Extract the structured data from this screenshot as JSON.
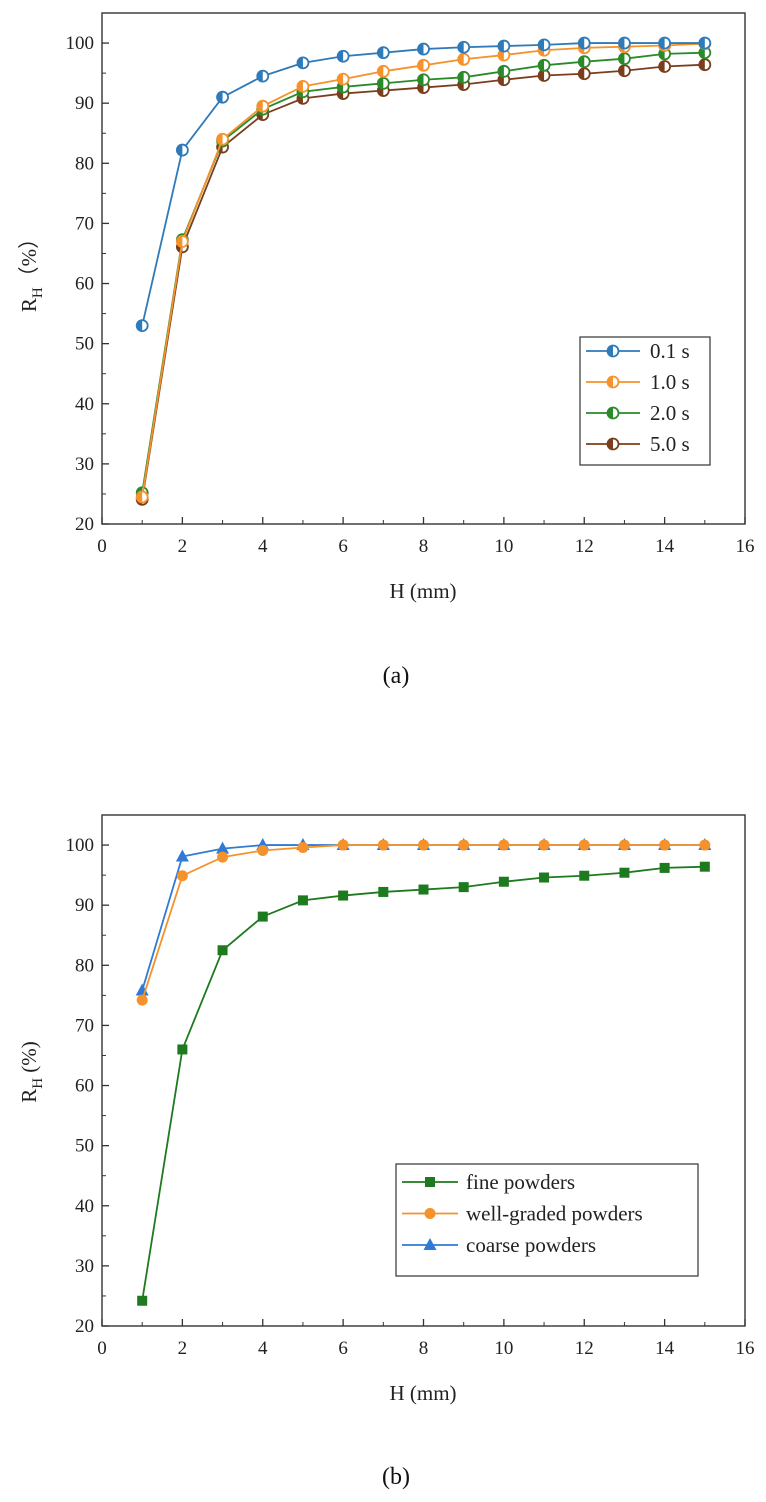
{
  "chart_data": [
    {
      "type": "line",
      "caption": "(a)",
      "xlabel": "H (mm)",
      "ylabel_main": "R",
      "ylabel_sub": "H",
      "ylabel_suffix": "（%）",
      "xlim": [
        0,
        16
      ],
      "ylim": [
        20,
        105
      ],
      "xticks": [
        0,
        2,
        4,
        6,
        8,
        10,
        12,
        14,
        16
      ],
      "yticks": [
        20,
        30,
        40,
        50,
        60,
        70,
        80,
        90,
        100
      ],
      "legend_position": "center-right",
      "x": [
        1,
        2,
        3,
        4,
        5,
        6,
        7,
        8,
        9,
        10,
        11,
        12,
        13,
        14,
        15
      ],
      "series": [
        {
          "name": "0.1 s",
          "color": "#2f7ab8",
          "marker": "half-circle",
          "values": [
            53.0,
            82.2,
            91.0,
            94.5,
            96.7,
            97.8,
            98.4,
            99.0,
            99.3,
            99.5,
            99.7,
            100.0,
            100.0,
            100.0,
            100.0
          ]
        },
        {
          "name": "1.0 s",
          "color": "#f5922b",
          "marker": "half-circle",
          "values": [
            24.5,
            67.0,
            84.0,
            89.5,
            92.8,
            94.0,
            95.3,
            96.3,
            97.3,
            98.0,
            98.8,
            99.2,
            99.4,
            99.6,
            99.9
          ]
        },
        {
          "name": "2.0 s",
          "color": "#2a8a2a",
          "marker": "half-circle",
          "values": [
            25.2,
            67.3,
            83.7,
            89.0,
            91.9,
            92.7,
            93.3,
            93.9,
            94.3,
            95.3,
            96.3,
            96.9,
            97.4,
            98.2,
            98.4
          ]
        },
        {
          "name": "5.0 s",
          "color": "#7a3e1c",
          "marker": "half-circle",
          "values": [
            24.1,
            66.1,
            82.7,
            88.1,
            90.8,
            91.6,
            92.1,
            92.6,
            93.1,
            93.9,
            94.6,
            94.9,
            95.4,
            96.1,
            96.4
          ]
        }
      ]
    },
    {
      "type": "line",
      "caption": "(b)",
      "xlabel": "H (mm)",
      "ylabel_main": "R",
      "ylabel_sub": "H",
      "ylabel_suffix": " (%)",
      "xlim": [
        0,
        16
      ],
      "ylim": [
        20,
        105
      ],
      "xticks": [
        0,
        2,
        4,
        6,
        8,
        10,
        12,
        14,
        16
      ],
      "yticks": [
        20,
        30,
        40,
        50,
        60,
        70,
        80,
        90,
        100
      ],
      "legend_position": "bottom-right",
      "x": [
        1,
        2,
        3,
        4,
        5,
        6,
        7,
        8,
        9,
        10,
        11,
        12,
        13,
        14,
        15
      ],
      "series": [
        {
          "name": "fine powders",
          "color": "#1e7a1e",
          "marker": "square",
          "values": [
            24.2,
            66.0,
            82.5,
            88.1,
            90.8,
            91.6,
            92.2,
            92.6,
            93.0,
            93.9,
            94.6,
            94.9,
            95.4,
            96.2,
            96.4
          ]
        },
        {
          "name": "well-graded powders",
          "color": "#f5922b",
          "marker": "circle",
          "values": [
            74.2,
            94.9,
            98.0,
            99.1,
            99.6,
            100.0,
            100.0,
            100.0,
            100.0,
            100.0,
            100.0,
            100.0,
            100.0,
            100.0,
            100.0
          ]
        },
        {
          "name": "coarse powders",
          "color": "#2f7ad4",
          "marker": "triangle",
          "values": [
            75.8,
            98.1,
            99.4,
            100.0,
            100.0,
            100.0,
            100.0,
            100.0,
            100.0,
            100.0,
            100.0,
            100.0,
            100.0,
            100.0,
            100.0
          ]
        }
      ]
    }
  ]
}
